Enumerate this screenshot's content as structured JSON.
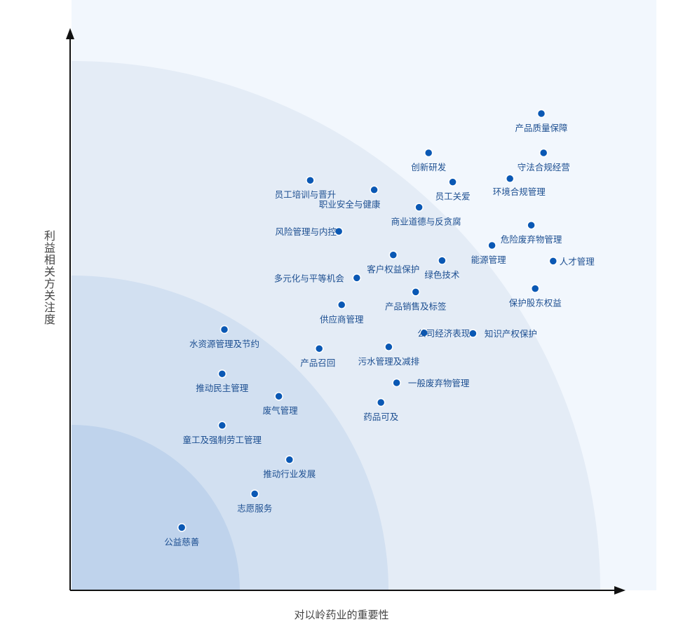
{
  "chart_data": {
    "type": "scatter",
    "title": "",
    "xlabel": "对以岭药业的重要性",
    "ylabel": "利益相关方关注度",
    "xlim": [
      0,
      100
    ],
    "ylim": [
      0,
      100
    ],
    "grid": false,
    "bands": 4,
    "colors": {
      "point": "#0a58b4",
      "label": "#1d4f91",
      "axis": "#111111",
      "band_outer": "#f2f7fd",
      "band_3": "#e4ecf6",
      "band_2": "#d2e0f1",
      "band_1": "#bfd3ec"
    },
    "points": [
      {
        "label": "产品质量保障",
        "x": 84,
        "y": 85
      },
      {
        "label": "守法合规经营",
        "x": 84.4,
        "y": 78
      },
      {
        "label": "创新研发",
        "x": 63.9,
        "y": 78
      },
      {
        "label": "员工关爱",
        "x": 68.2,
        "y": 72.8
      },
      {
        "label": "环境合规管理",
        "x": 78.4,
        "y": 73.4
      },
      {
        "label": "员工培训与晋升",
        "x": 42.8,
        "y": 73.1
      },
      {
        "label": "职业安全与健康",
        "x": 54.2,
        "y": 71.4
      },
      {
        "label": "商业道德与反贪腐",
        "x": 62.2,
        "y": 68.3
      },
      {
        "label": "风险管理与内控",
        "x": 47.9,
        "y": 64
      },
      {
        "label": "危险废弃物管理",
        "x": 82.2,
        "y": 65.1
      },
      {
        "label": "能源管理",
        "x": 75.2,
        "y": 61.5
      },
      {
        "label": "人才管理",
        "x": 86.1,
        "y": 58.7
      },
      {
        "label": "客户权益保护",
        "x": 57.6,
        "y": 59.8
      },
      {
        "label": "绿色技术",
        "x": 66.3,
        "y": 58.8
      },
      {
        "label": "多元化与平等机会",
        "x": 51.1,
        "y": 55.7
      },
      {
        "label": "保护股东权益",
        "x": 82.9,
        "y": 53.8
      },
      {
        "label": "产品销售及标签",
        "x": 61.6,
        "y": 53.2
      },
      {
        "label": "供应商管理",
        "x": 48.4,
        "y": 50.9
      },
      {
        "label": "知识产权保护",
        "x": 71.8,
        "y": 45.8
      },
      {
        "label": "公司经济表现",
        "x": 63.1,
        "y": 45.9
      },
      {
        "label": "水资源管理及节约",
        "x": 27.5,
        "y": 46.5
      },
      {
        "label": "产品召回",
        "x": 44.4,
        "y": 43.1
      },
      {
        "label": "污水管理及减排",
        "x": 56.8,
        "y": 43.4
      },
      {
        "label": "推动民主管理",
        "x": 27.1,
        "y": 38.6
      },
      {
        "label": "一般废弃物管理",
        "x": 58.2,
        "y": 37
      },
      {
        "label": "废气管理",
        "x": 37.2,
        "y": 34.6
      },
      {
        "label": "药品可及",
        "x": 55.4,
        "y": 33.5
      },
      {
        "label": "童工及强制劳工管理",
        "x": 27.1,
        "y": 29.4
      },
      {
        "label": "推动行业发展",
        "x": 39.1,
        "y": 23.3
      },
      {
        "label": "志愿服务",
        "x": 32.9,
        "y": 17.2
      },
      {
        "label": "公益慈善",
        "x": 19.9,
        "y": 11.2
      }
    ]
  }
}
